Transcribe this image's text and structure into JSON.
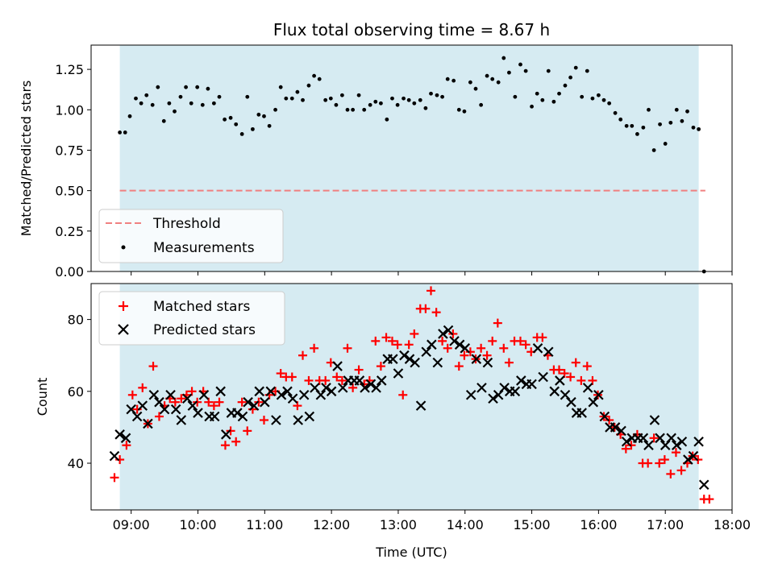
{
  "figure": {
    "title": "Flux total observing time = 8.67 h",
    "xlabel": "Time (UTC)",
    "xticks": [
      "09:00",
      "10:00",
      "11:00",
      "12:00",
      "13:00",
      "14:00",
      "15:00",
      "16:00",
      "17:00",
      "18:00"
    ],
    "xlim": [
      8.4,
      18.0
    ],
    "colors": {
      "shade": "#add8e6",
      "threshold": "#f08080",
      "measurements": "#000000",
      "matched": "#ff0000",
      "predicted": "#000000"
    }
  },
  "chart_data": [
    {
      "type": "scatter",
      "ylabel": "Matched/Predicted stars",
      "ylim": [
        0,
        1.4
      ],
      "yticks": [
        "0.00",
        "0.25",
        "0.50",
        "0.75",
        "1.00",
        "1.25"
      ],
      "shaded_interval": [
        8.83,
        17.5
      ],
      "threshold": {
        "name": "Threshold",
        "y": 0.5,
        "x_range": [
          8.83,
          17.6
        ]
      },
      "legend": {
        "placement": "lower-left",
        "entries": [
          "Threshold",
          "Measurements"
        ]
      },
      "series": [
        {
          "name": "Measurements",
          "x": [
            8.83,
            8.91,
            8.98,
            9.07,
            9.15,
            9.23,
            9.32,
            9.4,
            9.49,
            9.57,
            9.65,
            9.74,
            9.82,
            9.9,
            9.99,
            10.07,
            10.15,
            10.24,
            10.32,
            10.4,
            10.49,
            10.57,
            10.66,
            10.74,
            10.82,
            10.91,
            10.99,
            11.07,
            11.16,
            11.24,
            11.32,
            11.41,
            11.49,
            11.57,
            11.66,
            11.74,
            11.82,
            11.91,
            11.99,
            12.07,
            12.16,
            12.24,
            12.32,
            12.41,
            12.49,
            12.58,
            12.66,
            12.74,
            12.83,
            12.91,
            12.99,
            13.08,
            13.16,
            13.24,
            13.33,
            13.41,
            13.49,
            13.58,
            13.66,
            13.74,
            13.83,
            13.91,
            13.99,
            14.08,
            14.16,
            14.24,
            14.33,
            14.41,
            14.5,
            14.58,
            14.66,
            14.75,
            14.83,
            14.91,
            15.0,
            15.08,
            15.16,
            15.25,
            15.33,
            15.41,
            15.5,
            15.58,
            15.66,
            15.75,
            15.83,
            15.91,
            16.0,
            16.08,
            16.16,
            16.25,
            16.33,
            16.42,
            16.5,
            16.58,
            16.67,
            16.75,
            16.83,
            16.92,
            17.0,
            17.08,
            17.17,
            17.25,
            17.33,
            17.42,
            17.5,
            17.58
          ],
          "y": [
            0.86,
            0.86,
            0.96,
            1.07,
            1.04,
            1.09,
            1.03,
            1.14,
            0.93,
            1.04,
            0.99,
            1.08,
            1.14,
            1.04,
            1.14,
            1.03,
            1.13,
            1.04,
            1.08,
            0.94,
            0.95,
            0.91,
            0.85,
            1.08,
            0.88,
            0.97,
            0.96,
            0.9,
            1.0,
            1.14,
            1.07,
            1.07,
            1.11,
            1.06,
            1.15,
            1.21,
            1.19,
            1.06,
            1.07,
            1.03,
            1.09,
            1.0,
            1.0,
            1.09,
            1.0,
            1.03,
            1.05,
            1.04,
            0.94,
            1.07,
            1.03,
            1.07,
            1.06,
            1.04,
            1.06,
            1.01,
            1.1,
            1.09,
            1.08,
            1.19,
            1.18,
            1.0,
            0.99,
            1.17,
            1.13,
            1.03,
            1.21,
            1.19,
            1.17,
            1.32,
            1.23,
            1.08,
            1.28,
            1.24,
            1.02,
            1.1,
            1.06,
            1.24,
            1.05,
            1.1,
            1.15,
            1.2,
            1.26,
            1.08,
            1.24,
            1.07,
            1.09,
            1.06,
            1.04,
            0.98,
            0.94,
            0.9,
            0.9,
            0.85,
            0.89,
            1.0,
            0.75,
            0.91,
            0.79,
            0.92,
            1.0,
            0.93,
            0.99,
            0.89,
            0.88,
            0.0
          ]
        }
      ]
    },
    {
      "type": "scatter",
      "ylabel": "Count",
      "ylim": [
        27,
        90
      ],
      "yticks": [
        "40",
        "60",
        "80"
      ],
      "shaded_interval": [
        8.83,
        17.5
      ],
      "legend": {
        "placement": "upper-left",
        "entries": [
          "Matched stars",
          "Predicted stars"
        ]
      },
      "series": [
        {
          "name": "Matched stars",
          "marker": "plus",
          "x": [
            8.75,
            8.83,
            8.93,
            9.02,
            9.09,
            9.17,
            9.25,
            9.33,
            9.42,
            9.5,
            9.58,
            9.66,
            9.75,
            9.83,
            9.91,
            9.99,
            10.08,
            10.16,
            10.24,
            10.32,
            10.41,
            10.49,
            10.57,
            10.66,
            10.74,
            10.82,
            10.91,
            10.99,
            11.07,
            11.16,
            11.24,
            11.32,
            11.41,
            11.49,
            11.57,
            11.66,
            11.74,
            11.82,
            11.91,
            11.99,
            12.08,
            12.16,
            12.24,
            12.32,
            12.41,
            12.49,
            12.57,
            12.66,
            12.74,
            12.82,
            12.91,
            12.99,
            13.07,
            13.16,
            13.24,
            13.33,
            13.41,
            13.49,
            13.57,
            13.66,
            13.74,
            13.82,
            13.91,
            13.99,
            14.08,
            14.16,
            14.24,
            14.33,
            14.41,
            14.49,
            14.58,
            14.66,
            14.74,
            14.83,
            14.91,
            14.99,
            15.08,
            15.16,
            15.24,
            15.33,
            15.41,
            15.49,
            15.58,
            15.66,
            15.74,
            15.83,
            15.91,
            15.99,
            16.08,
            16.16,
            16.24,
            16.33,
            16.41,
            16.49,
            16.58,
            16.66,
            16.74,
            16.83,
            16.91,
            16.99,
            17.08,
            17.16,
            17.24,
            17.33,
            17.41,
            17.49,
            17.58,
            17.66
          ],
          "y": [
            36,
            41,
            45,
            59,
            55,
            61,
            51,
            67,
            53,
            56,
            58,
            57,
            58,
            59,
            60,
            57,
            60,
            57,
            56,
            57,
            45,
            49,
            46,
            57,
            49,
            55,
            57,
            52,
            59,
            60,
            65,
            64,
            64,
            56,
            70,
            63,
            72,
            63,
            63,
            68,
            64,
            63,
            72,
            61,
            66,
            62,
            63,
            74,
            67,
            75,
            74,
            73,
            59,
            73,
            76,
            83,
            83,
            88,
            82,
            74,
            72,
            76,
            67,
            70,
            71,
            69,
            72,
            70,
            74,
            79,
            72,
            68,
            74,
            74,
            73,
            71,
            75,
            75,
            70,
            66,
            66,
            65,
            64,
            68,
            63,
            67,
            63,
            59,
            53,
            52,
            50,
            48,
            44,
            45,
            48,
            40,
            40,
            47,
            40,
            41,
            37,
            43,
            38,
            40,
            42,
            41,
            30,
            30
          ]
        },
        {
          "name": "Predicted stars",
          "marker": "x",
          "x": [
            8.75,
            8.83,
            8.92,
            9.0,
            9.09,
            9.17,
            9.25,
            9.34,
            9.42,
            9.5,
            9.59,
            9.67,
            9.75,
            9.84,
            9.92,
            10.0,
            10.09,
            10.17,
            10.25,
            10.34,
            10.42,
            10.5,
            10.59,
            10.67,
            10.75,
            10.84,
            10.92,
            11.0,
            11.09,
            11.17,
            11.25,
            11.34,
            11.42,
            11.5,
            11.59,
            11.67,
            11.75,
            11.84,
            11.92,
            12.0,
            12.09,
            12.17,
            12.25,
            12.34,
            12.42,
            12.5,
            12.59,
            12.67,
            12.75,
            12.84,
            12.92,
            13.0,
            13.09,
            13.17,
            13.25,
            13.34,
            13.42,
            13.5,
            13.59,
            13.67,
            13.75,
            13.84,
            13.92,
            14.0,
            14.09,
            14.17,
            14.25,
            14.34,
            14.42,
            14.5,
            14.59,
            14.67,
            14.75,
            14.84,
            14.92,
            15.0,
            15.09,
            15.17,
            15.25,
            15.34,
            15.42,
            15.5,
            15.59,
            15.67,
            15.75,
            15.84,
            15.92,
            16.0,
            16.09,
            16.17,
            16.25,
            16.34,
            16.42,
            16.5,
            16.59,
            16.67,
            16.75,
            16.84,
            16.92,
            17.0,
            17.09,
            17.17,
            17.25,
            17.34,
            17.42,
            17.5,
            17.58
          ],
          "y": [
            42,
            48,
            47,
            55,
            53,
            56,
            51,
            59,
            57,
            55,
            59,
            55,
            52,
            58,
            56,
            54,
            59,
            53,
            53,
            60,
            48,
            54,
            54,
            53,
            57,
            56,
            60,
            57,
            60,
            52,
            59,
            60,
            58,
            52,
            59,
            53,
            61,
            59,
            61,
            60,
            67,
            61,
            63,
            63,
            63,
            61,
            62,
            61,
            63,
            69,
            69,
            65,
            70,
            69,
            68,
            56,
            71,
            73,
            68,
            76,
            77,
            74,
            73,
            72,
            59,
            69,
            61,
            68,
            58,
            59,
            61,
            60,
            60,
            63,
            62,
            62,
            72,
            64,
            71,
            60,
            63,
            59,
            57,
            54,
            54,
            61,
            57,
            59,
            53,
            50,
            50,
            49,
            46,
            47,
            47,
            47,
            45,
            52,
            47,
            45,
            47,
            45,
            46,
            41,
            42,
            46,
            34
          ]
        }
      ]
    }
  ]
}
